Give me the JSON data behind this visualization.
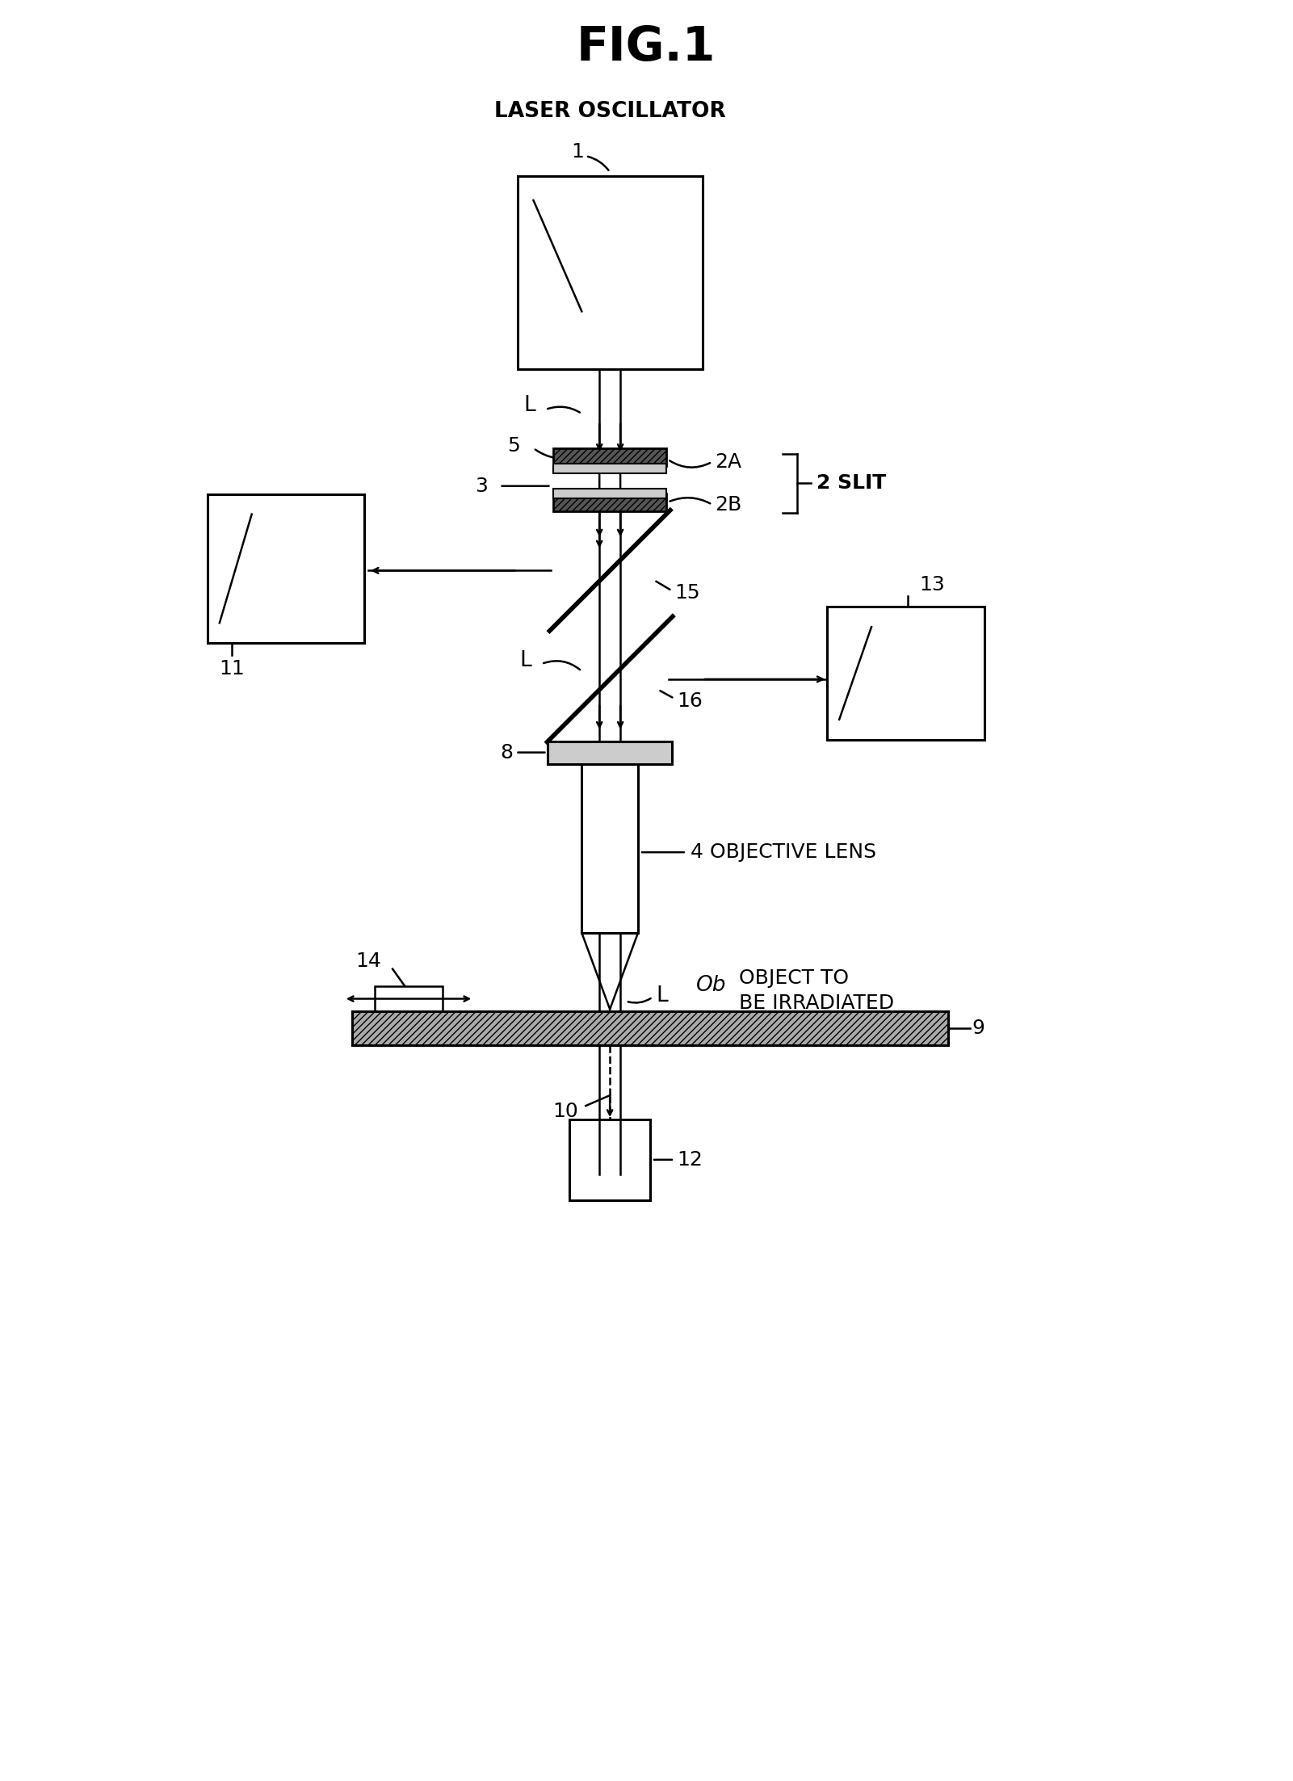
{
  "fig_title": "FIG.1",
  "bg_color": "#ffffff",
  "line_color": "#000000",
  "fig_width": 16.01,
  "fig_height": 22.05,
  "laser_oscillator_label": "LASER OSCILLATOR",
  "num1": "1",
  "numL_top": "L",
  "num5": "5",
  "num3": "3",
  "num2A": "2A",
  "num2B": "2B",
  "num2slit": "2 SLIT",
  "num15": "15",
  "num16": "16",
  "num11": "11",
  "num13": "13",
  "numL_mid": "L",
  "num8": "8",
  "num4": "4 OBJECTIVE LENS",
  "num14": "14",
  "numOb": "Ob",
  "numOb2": "OBJECT TO\nBE IRRADIATED",
  "numL_bot": "L",
  "num9": "9",
  "num10": "10",
  "num12": "12"
}
